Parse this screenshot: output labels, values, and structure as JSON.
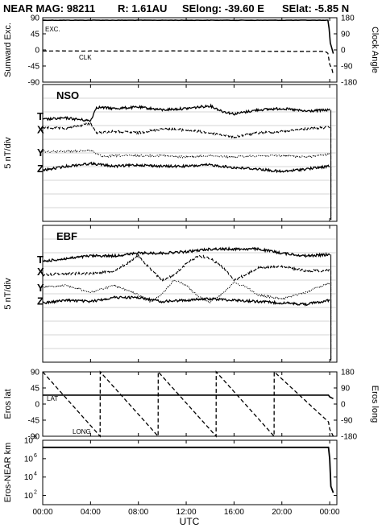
{
  "header": {
    "mission": "NEAR MAG: 98211",
    "r": "R: 1.61AU",
    "selong": "SElong:  -39.60 E",
    "selat": "SElat:    -5.85 N"
  },
  "time_axis": {
    "label": "UTC",
    "ticks": [
      "00:00",
      "04:00",
      "08:00",
      "12:00",
      "16:00",
      "20:00",
      "00:00"
    ],
    "hours": [
      0,
      4,
      8,
      12,
      16,
      20,
      24
    ],
    "range_hours": [
      0,
      24.6
    ]
  },
  "chart_data": [
    {
      "type": "line",
      "panel": "sunward",
      "ylabel": "Sunward Exc.",
      "ylabel_right": "Clock Angle",
      "yticks": [
        "90",
        "45",
        "0",
        "-45",
        "-90"
      ],
      "yticks_right": [
        "180",
        "90",
        "0",
        "-90",
        "-180"
      ],
      "ylim": [
        -90,
        90
      ],
      "annotations": [
        "EXC.",
        "CLK"
      ],
      "series": [
        {
          "key": "exc",
          "x": [
            0,
            5,
            10,
            15,
            20,
            23.85,
            23.95,
            24.05,
            24.3
          ],
          "values": [
            83,
            83,
            83,
            83,
            83,
            83,
            60,
            20,
            -10
          ]
        },
        {
          "key": "clk",
          "x": [
            0,
            5,
            10,
            15,
            20,
            23.6,
            23.85,
            24.0,
            24.2,
            24.3
          ],
          "values": [
            -3,
            -3,
            -3,
            -3,
            -4,
            -4,
            -10,
            -40,
            -55,
            -70
          ]
        }
      ]
    },
    {
      "type": "line",
      "panel": "nso",
      "label": "NSO",
      "ylabel": "5 nT/div",
      "components": [
        "T",
        "X",
        "Y",
        "Z"
      ],
      "series": [
        {
          "key": "T",
          "offset_div": 0,
          "x": [
            0,
            2,
            4,
            4.5,
            6,
            8,
            10,
            12,
            14,
            15,
            16,
            18,
            20,
            22,
            24
          ],
          "values": [
            -0.2,
            -0.1,
            -0.3,
            0.7,
            0.6,
            0.7,
            0.5,
            0.6,
            0.8,
            0.4,
            0.2,
            0.5,
            0.6,
            0.4,
            0.5
          ]
        },
        {
          "key": "X",
          "offset_div": -1,
          "x": [
            0,
            2,
            4,
            4.5,
            6,
            8,
            10,
            12,
            14,
            16,
            18,
            20,
            22,
            24
          ],
          "values": [
            0.2,
            0.1,
            0.5,
            -0.2,
            -0.1,
            -0.2,
            0.1,
            0.0,
            -0.2,
            -0.5,
            -0.2,
            -0.1,
            0.1,
            0.2
          ]
        },
        {
          "key": "Y",
          "offset_div": -2.7,
          "x": [
            0,
            2,
            4,
            5,
            6,
            8,
            10,
            12,
            14,
            16,
            18,
            20,
            22,
            24
          ],
          "values": [
            0.1,
            0.1,
            0.2,
            -0.3,
            -0.2,
            -0.2,
            -0.2,
            -0.3,
            -0.2,
            -0.3,
            -0.2,
            -0.2,
            -0.3,
            -0.1
          ]
        },
        {
          "key": "Z",
          "offset_div": -3.9,
          "x": [
            0,
            2,
            4,
            6,
            8,
            10,
            12,
            14,
            16,
            18,
            20,
            22,
            24
          ],
          "values": [
            -0.1,
            0.2,
            0.4,
            0.2,
            0.3,
            0.2,
            0.2,
            0.3,
            0.1,
            0.0,
            -0.2,
            0.0,
            0.2
          ]
        }
      ]
    },
    {
      "type": "line",
      "panel": "ebf",
      "label": "EBF",
      "ylabel": "5 nT/div",
      "components": [
        "T",
        "X",
        "Y",
        "Z"
      ],
      "series": [
        {
          "key": "T",
          "offset_div": 0,
          "x": [
            0,
            2,
            4,
            6,
            8,
            10,
            12,
            14,
            16,
            18,
            20,
            22,
            24
          ],
          "values": [
            -0.1,
            0.1,
            0.3,
            0.3,
            0.5,
            0.5,
            0.6,
            0.8,
            0.8,
            0.8,
            0.5,
            0.3,
            0.4
          ]
        },
        {
          "key": "X",
          "offset_div": -0.9,
          "x": [
            0,
            2,
            4,
            6,
            7,
            8,
            9,
            10,
            11,
            12,
            13,
            14,
            15,
            16,
            17,
            18,
            20,
            22,
            24
          ],
          "values": [
            -0.2,
            -0.1,
            -0.1,
            0.1,
            0.6,
            1.2,
            0.2,
            -0.6,
            -0.2,
            0.6,
            1.2,
            1.0,
            0.4,
            -0.6,
            -0.2,
            0.3,
            0.4,
            0.1,
            0.1
          ]
        },
        {
          "key": "Y",
          "offset_div": -2.1,
          "x": [
            0,
            2,
            4,
            6,
            8,
            9,
            10,
            11,
            12,
            13,
            14,
            15,
            16,
            17,
            18,
            20,
            22,
            24
          ],
          "values": [
            0.1,
            0.2,
            -0.3,
            0.2,
            -0.5,
            -1.0,
            -0.4,
            0.6,
            0.2,
            -0.6,
            -1.0,
            -0.4,
            0.4,
            0.1,
            -0.5,
            -0.8,
            -0.3,
            0.4
          ]
        },
        {
          "key": "Z",
          "offset_div": -3.1,
          "x": [
            0,
            2,
            4,
            6,
            8,
            10,
            12,
            14,
            16,
            18,
            20,
            22,
            24
          ],
          "values": [
            -0.1,
            0.1,
            0.0,
            0.3,
            0.3,
            0.0,
            0.1,
            0.2,
            0.1,
            0.0,
            -0.1,
            -0.2,
            0.1
          ]
        }
      ]
    },
    {
      "type": "line",
      "panel": "eros",
      "ylabel": "Eros lat",
      "ylabel_right": "Eros long",
      "yticks": [
        "90",
        "45",
        "0",
        "-45",
        "-90"
      ],
      "yticks_right": [
        "180",
        "90",
        "0",
        "-90",
        "-180"
      ],
      "ylim": [
        -90,
        90
      ],
      "annotations": [
        "LAT",
        "LONG"
      ],
      "series": [
        {
          "key": "lat",
          "x": [
            0,
            23.9,
            24.0,
            24.3
          ],
          "values": [
            25,
            25,
            20,
            15
          ]
        },
        {
          "key": "long",
          "x": [
            0,
            4.8,
            4.81,
            9.65,
            9.66,
            14.5,
            14.51,
            19.35,
            19.36,
            23.9,
            24.0,
            24.3
          ],
          "values": [
            180,
            -180,
            180,
            -180,
            180,
            -180,
            180,
            -180,
            180,
            -100,
            -140,
            -180
          ]
        }
      ]
    },
    {
      "type": "line",
      "panel": "distance",
      "ylabel": "Eros-NEAR km",
      "yscale": "log",
      "ylim": [
        10,
        100000000
      ],
      "ytick_values": [
        100,
        10000,
        1000000,
        100000000
      ],
      "series": [
        {
          "key": "dist",
          "x": [
            0,
            23.9,
            24.0,
            24.1,
            24.3
          ],
          "values": [
            17000000.0,
            17000000.0,
            1000000.0,
            1000.0,
            200
          ]
        }
      ]
    }
  ]
}
